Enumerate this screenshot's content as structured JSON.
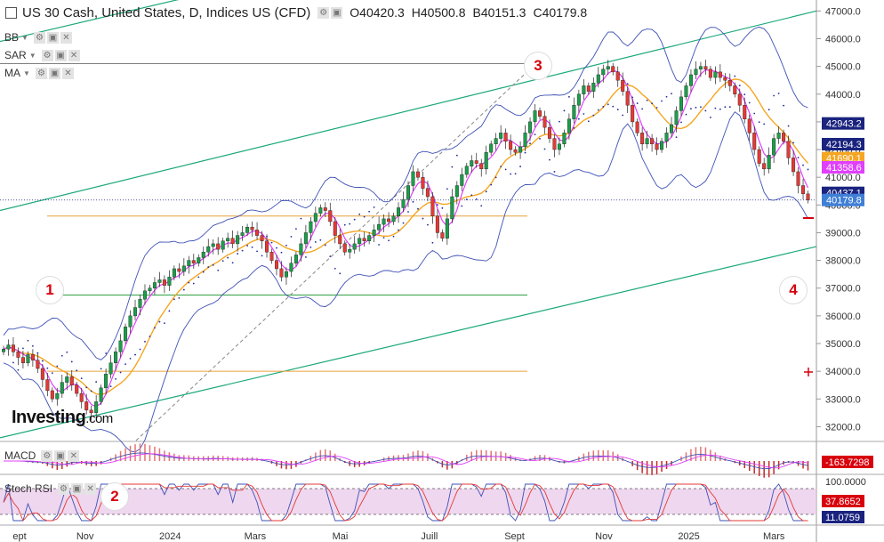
{
  "header": {
    "title": "US 30 Cash, United States, D, Indices US (CFD)",
    "open": "O40420.3",
    "high": "H40500.8",
    "low": "B40151.3",
    "close": "C40179.8"
  },
  "indicators": [
    {
      "label": "BB"
    },
    {
      "label": "SAR"
    },
    {
      "label": "MA"
    }
  ],
  "panes": {
    "macd_label": "MACD",
    "stoch_label": "Stoch RSI"
  },
  "markers": [
    "1",
    "2",
    "3",
    "4"
  ],
  "logo": {
    "brand": "Investing",
    "suffix": ".com"
  },
  "colors": {
    "up": "#1a9e4a",
    "down": "#e53935",
    "bb": "#3f51b5",
    "ma_fast": "#e040fb",
    "ma_slow": "#f5a623",
    "sar": "#1e2a9e",
    "channel": "#1aa87a",
    "level": "#e6a23c",
    "green_level": "#2ea043",
    "stoch_bg": "#e8c6e8"
  },
  "chart_data": {
    "type": "candlestick",
    "x_ticks": [
      "ept",
      "Nov",
      "2024",
      "Mars",
      "Mai",
      "Juill",
      "Sept",
      "Nov",
      "2025",
      "Mars"
    ],
    "y_ticks": [
      "47000.0",
      "46000.0",
      "45000.0",
      "44000.0",
      "43000.0",
      "42000.0",
      "41000.0",
      "40000.0",
      "39000.0",
      "38000.0",
      "37000.0",
      "36000.0",
      "35000.0",
      "34000.0",
      "33000.0",
      "32000.0"
    ],
    "ylim": [
      31500,
      47300
    ],
    "price_tags": [
      {
        "label": "42943.2",
        "value": 42943.2,
        "color": "#1a237e"
      },
      {
        "label": "42194.3",
        "value": 42194.3,
        "color": "#1a237e"
      },
      {
        "label": "41690.1",
        "value": 41690.1,
        "color": "#f5a623"
      },
      {
        "label": "41358.6",
        "value": 41358.6,
        "color": "#e040fb"
      },
      {
        "label": "40437.1",
        "value": 40437.1,
        "color": "#1a237e"
      },
      {
        "label": "40179.8",
        "value": 40179.8,
        "color": "#3f7fd6"
      }
    ],
    "levels": [
      {
        "value": 45100,
        "color": "#555"
      },
      {
        "value": 39600,
        "color": "#e6a23c"
      },
      {
        "value": 36750,
        "color": "#2ea043"
      },
      {
        "value": 34000,
        "color": "#e6a23c"
      }
    ],
    "channel_upper": [
      {
        "month": 0,
        "value": 39800
      },
      {
        "month": 19.2,
        "value": 47000
      }
    ],
    "channel_lower": [
      {
        "month": 0,
        "value": 31600
      },
      {
        "month": 19.2,
        "value": 38500
      }
    ],
    "channel_top": [
      {
        "month": 0,
        "value": 45900
      },
      {
        "month": 8.6,
        "value": 49000
      }
    ],
    "dashed_trend": [
      {
        "month": 3.2,
        "value": 31500
      },
      {
        "month": 12.6,
        "value": 45100
      }
    ],
    "close_series": [
      34800,
      34950,
      34700,
      34500,
      34300,
      34600,
      34400,
      34100,
      33700,
      33300,
      33000,
      33200,
      33600,
      33800,
      33500,
      33200,
      32900,
      32600,
      32500,
      32900,
      33400,
      33900,
      34300,
      34700,
      35100,
      35600,
      36000,
      36300,
      36600,
      36900,
      37000,
      37200,
      37300,
      37100,
      37400,
      37700,
      37600,
      37800,
      38000,
      37900,
      38100,
      38300,
      38500,
      38600,
      38400,
      38700,
      38800,
      38600,
      38900,
      39000,
      39200,
      39100,
      38900,
      38700,
      38300,
      38000,
      37700,
      37400,
      37600,
      37900,
      38200,
      38600,
      39000,
      39400,
      39700,
      39900,
      39800,
      39400,
      38900,
      38600,
      38300,
      38400,
      38600,
      38800,
      38700,
      38900,
      39100,
      39300,
      39500,
      39400,
      39600,
      39900,
      40200,
      40700,
      41200,
      41000,
      40600,
      40300,
      39600,
      39000,
      38800,
      39500,
      40300,
      40700,
      41100,
      41400,
      41600,
      41500,
      41300,
      41900,
      42200,
      42400,
      42600,
      42300,
      42000,
      41900,
      42100,
      42600,
      43000,
      43400,
      43200,
      42800,
      42400,
      42000,
      42200,
      42600,
      43100,
      43600,
      44000,
      44300,
      44100,
      44400,
      44700,
      44900,
      45000,
      44800,
      44500,
      44100,
      43600,
      43000,
      42600,
      42200,
      42400,
      42200,
      42000,
      42300,
      42600,
      42900,
      43400,
      43900,
      44300,
      44700,
      44900,
      45000,
      44900,
      44600,
      44800,
      44600,
      44500,
      44300,
      44000,
      43600,
      43100,
      42600,
      42000,
      41500,
      41300,
      41800,
      42400,
      42600,
      42300,
      41700,
      41200,
      40700,
      40400,
      40179.8
    ],
    "macd_value": "-163.7298",
    "stoch_ticks": [
      "100.0000",
      "37.8652",
      "11.0759"
    ]
  }
}
